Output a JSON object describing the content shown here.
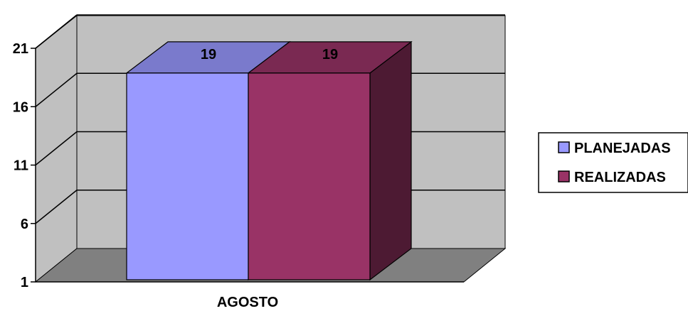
{
  "chart_data": {
    "type": "bar",
    "style": "3d-clustered",
    "categories": [
      "AGOSTO"
    ],
    "series": [
      {
        "name": "PLANEJADAS",
        "values": [
          19
        ],
        "color": "#9999ff",
        "color_top": "#7a7acc",
        "color_side": "#5c5c99"
      },
      {
        "name": "REALIZADAS",
        "values": [
          19
        ],
        "color": "#993366",
        "color_top": "#7a2952",
        "color_side": "#4d1a33"
      }
    ],
    "ylim": [
      1,
      21
    ],
    "yticks": [
      "1",
      "6",
      "11",
      "16",
      "21"
    ],
    "data_labels": [
      "19",
      "19"
    ],
    "grid": true,
    "legend": "right",
    "wall_color": "#c0c0c0",
    "floor_color": "#808080"
  }
}
